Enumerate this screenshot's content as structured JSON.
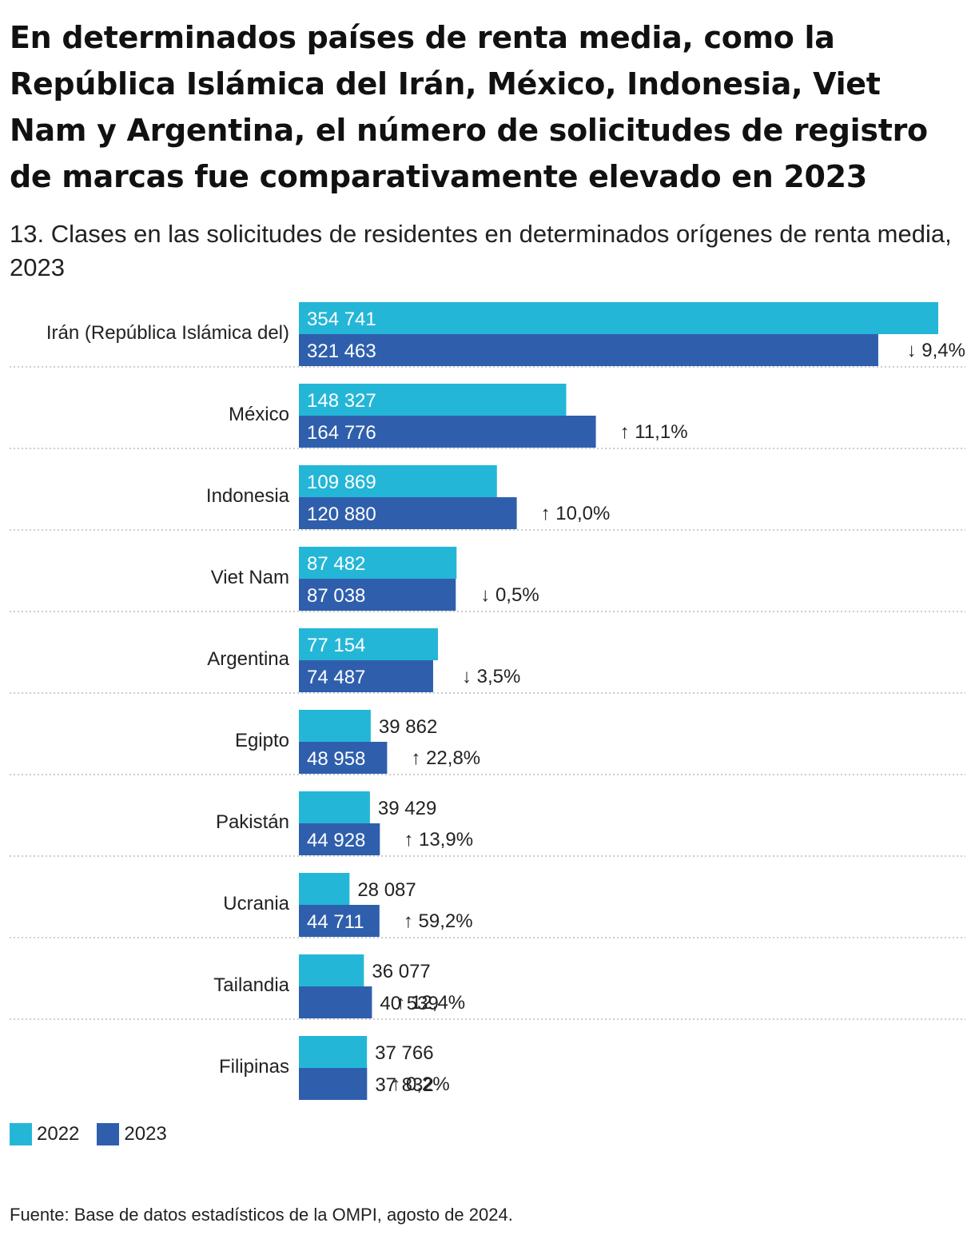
{
  "title": "En determinados países de renta media, como la República Islámica del Irán, México, Indonesia, Viet Nam y Argentina, el número de solicitudes de registro de marcas fue comparativamente elevado en 2023",
  "subtitle": "13. Clases en las solicitudes de residentes en determinados orígenes de renta media, 2023",
  "legend": [
    {
      "label": "2022",
      "color": "#24b6d7"
    },
    {
      "label": "2023",
      "color": "#2f5fac"
    }
  ],
  "source": "Fuente: Base de datos estadísticos de la OMPI, agosto de 2024.",
  "chart_data": {
    "type": "bar",
    "orientation": "horizontal",
    "title": "13. Clases en las solicitudes de residentes en determinados orígenes de renta media, 2023",
    "xlabel": "",
    "ylabel": "",
    "xlim": [
      0,
      354741
    ],
    "categories": [
      "Irán (República Islámica del)",
      "México",
      "Indonesia",
      "Viet Nam",
      "Argentina",
      "Egipto",
      "Pakistán",
      "Ucrania",
      "Tailandia",
      "Filipinas"
    ],
    "series": [
      {
        "name": "2022",
        "color": "#24b6d7",
        "values": [
          354741,
          148327,
          109869,
          87482,
          77154,
          39862,
          39429,
          28087,
          36077,
          37766
        ]
      },
      {
        "name": "2023",
        "color": "#2f5fac",
        "values": [
          321463,
          164776,
          120880,
          87038,
          74487,
          48958,
          44928,
          44711,
          40539,
          37832
        ]
      }
    ],
    "value_labels": {
      "2022": [
        "354 741",
        "148 327",
        "109 869",
        "87 482",
        "77 154",
        "39 862",
        "39 429",
        "28 087",
        "36 077",
        "37 766"
      ],
      "2023": [
        "321 463",
        "164 776",
        "120 880",
        "87 038",
        "74 487",
        "48 958",
        "44 928",
        "44 711",
        "40 539",
        "37 832"
      ]
    },
    "changes": [
      {
        "direction": "down",
        "arrow": "↓",
        "text": "9,4%"
      },
      {
        "direction": "up",
        "arrow": "↑",
        "text": "11,1%"
      },
      {
        "direction": "up",
        "arrow": "↑",
        "text": "10,0%"
      },
      {
        "direction": "down",
        "arrow": "↓",
        "text": "0,5%"
      },
      {
        "direction": "down",
        "arrow": "↓",
        "text": "3,5%"
      },
      {
        "direction": "up",
        "arrow": "↑",
        "text": "22,8%"
      },
      {
        "direction": "up",
        "arrow": "↑",
        "text": "13,9%"
      },
      {
        "direction": "up",
        "arrow": "↑",
        "text": "59,2%"
      },
      {
        "direction": "up",
        "arrow": "↑",
        "text": "12,4%"
      },
      {
        "direction": "up",
        "arrow": "↑",
        "text": "0,2%"
      }
    ],
    "legend_position": "bottom-left",
    "grid": false
  }
}
